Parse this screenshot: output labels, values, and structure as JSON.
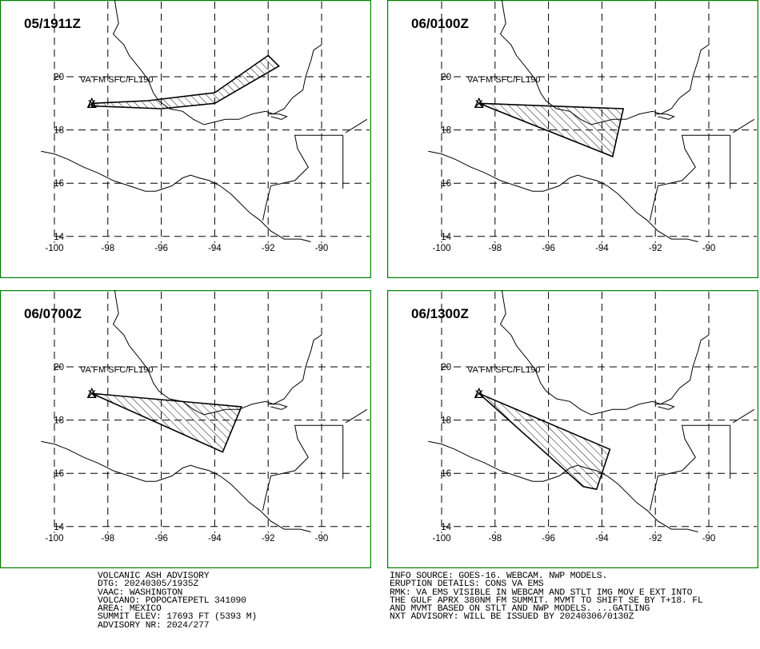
{
  "map": {
    "lon_labels": [
      "-100",
      "-98",
      "-96",
      "-94",
      "-92",
      "-90"
    ],
    "lat_labels": [
      "20",
      "18",
      "16",
      "14"
    ],
    "volcano_marker": "triangle-x-icon",
    "colors": {
      "frame": "#008000",
      "lines": "#000000",
      "background": "#ffffff"
    }
  },
  "panels": [
    {
      "valid_time": "05/1911Z",
      "cloud_label": "VA FM SFC/FL190",
      "polygon_lonlat": [
        [
          -98.6,
          19.0
        ],
        [
          -96.5,
          19.1
        ],
        [
          -94.0,
          19.4
        ],
        [
          -92.0,
          20.8
        ],
        [
          -91.6,
          20.4
        ],
        [
          -94.0,
          19.0
        ],
        [
          -96.0,
          18.8
        ],
        [
          -98.6,
          18.9
        ]
      ]
    },
    {
      "valid_time": "06/0100Z",
      "cloud_label": "VA FM SFC/FL190",
      "polygon_lonlat": [
        [
          -98.6,
          19.0
        ],
        [
          -93.2,
          18.8
        ],
        [
          -93.6,
          17.0
        ]
      ]
    },
    {
      "valid_time": "06/0700Z",
      "cloud_label": "VA FM SFC/FL190",
      "polygon_lonlat": [
        [
          -98.6,
          19.0
        ],
        [
          -93.0,
          18.5
        ],
        [
          -93.7,
          16.8
        ]
      ]
    },
    {
      "valid_time": "06/1300Z",
      "cloud_label": "VA FM SFC/FL190",
      "polygon_lonlat": [
        [
          -98.6,
          19.0
        ],
        [
          -93.7,
          16.9
        ],
        [
          -94.2,
          15.4
        ],
        [
          -94.7,
          15.5
        ]
      ]
    }
  ],
  "advisory_left": [
    "VOLCANIC ASH ADVISORY",
    "DTG: 20240305/1935Z",
    "VAAC: WASHINGTON",
    "VOLCANO: POPOCATEPETL 341090",
    "AREA: MEXICO",
    "SUMMIT ELEV: 17693 FT (5393 M)",
    "ADVISORY NR: 2024/277"
  ],
  "advisory_right": [
    "INFO SOURCE: GOES-16. WEBCAM. NWP MODELS.",
    "ERUPTION DETAILS: CONS VA EMS",
    "RMK: VA EMS VISIBLE IN WEBCAM AND STLT IMG MOV E EXT INTO",
    "THE GULF APRX 380NM FM SUMMIT. MVMT TO SHIFT SE BY T+18. FL",
    "AND MVMT BASED ON STLT AND NWP MODELS. ...GATLING",
    "NXT ADVISORY: WILL BE ISSUED BY 20240306/0130Z"
  ]
}
